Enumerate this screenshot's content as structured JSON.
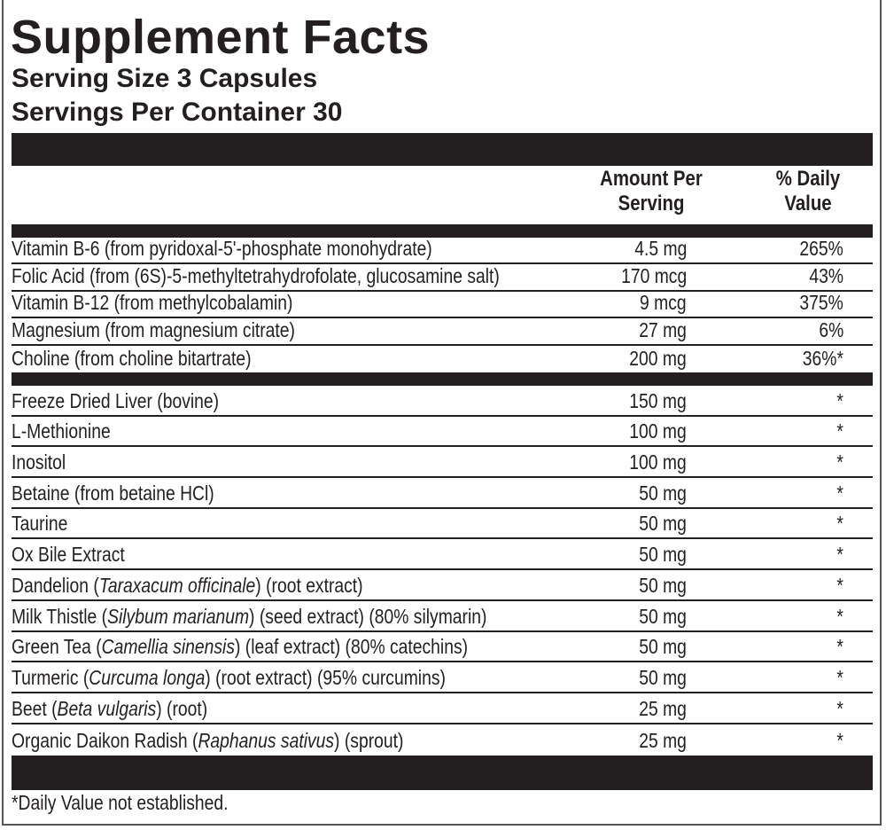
{
  "title": "Supplement Facts",
  "serving_size": "Serving Size 3 Capsules",
  "servings_per_container": "Servings Per Container 30",
  "headers": {
    "amount": "Amount Per Serving",
    "daily_value": "% Daily Value"
  },
  "vitamins": [
    {
      "name": [
        {
          "t": "Vitamin B-6 (from pyridoxal-5'-phosphate monohydrate)"
        }
      ],
      "amount": "4.5 mg",
      "dv": "265%"
    },
    {
      "name": [
        {
          "t": "Folic Acid (from (6S)-5-methyltetrahydrofolate, glucosamine salt)"
        }
      ],
      "amount": "170 mcg",
      "dv": "43%"
    },
    {
      "name": [
        {
          "t": "Vitamin B-12 (from methylcobalamin)"
        }
      ],
      "amount": "9 mcg",
      "dv": "375%"
    },
    {
      "name": [
        {
          "t": "Magnesium (from magnesium citrate)"
        }
      ],
      "amount": "27 mg",
      "dv": "6%"
    },
    {
      "name": [
        {
          "t": "Choline (from choline bitartrate)"
        }
      ],
      "amount": "200 mg",
      "dv": "36%*"
    }
  ],
  "others": [
    {
      "name": [
        {
          "t": "Freeze Dried Liver (bovine)"
        }
      ],
      "amount": "150 mg",
      "dv": "*"
    },
    {
      "name": [
        {
          "t": "L-Methionine"
        }
      ],
      "amount": "100 mg",
      "dv": "*"
    },
    {
      "name": [
        {
          "t": "Inositol"
        }
      ],
      "amount": "100 mg",
      "dv": "*"
    },
    {
      "name": [
        {
          "t": "Betaine (from betaine HCl)"
        }
      ],
      "amount": "50 mg",
      "dv": "*"
    },
    {
      "name": [
        {
          "t": "Taurine"
        }
      ],
      "amount": "50 mg",
      "dv": "*"
    },
    {
      "name": [
        {
          "t": "Ox Bile Extract"
        }
      ],
      "amount": "50 mg",
      "dv": "*"
    },
    {
      "name": [
        {
          "t": "Dandelion ("
        },
        {
          "t": "Taraxacum officinale",
          "i": true
        },
        {
          "t": ") (root extract)"
        }
      ],
      "amount": "50 mg",
      "dv": "*"
    },
    {
      "name": [
        {
          "t": "Milk Thistle ("
        },
        {
          "t": "Silybum marianum",
          "i": true
        },
        {
          "t": ") (seed extract) (80% silymarin)"
        }
      ],
      "amount": "50 mg",
      "dv": "*"
    },
    {
      "name": [
        {
          "t": "Green Tea ("
        },
        {
          "t": "Camellia sinensis",
          "i": true
        },
        {
          "t": ") (leaf extract) (80% catechins)"
        }
      ],
      "amount": "50 mg",
      "dv": "*"
    },
    {
      "name": [
        {
          "t": "Turmeric ("
        },
        {
          "t": "Curcuma longa",
          "i": true
        },
        {
          "t": ") (root extract) (95% curcumins)"
        }
      ],
      "amount": "50 mg",
      "dv": "*"
    },
    {
      "name": [
        {
          "t": "Beet ("
        },
        {
          "t": "Beta vulgaris",
          "i": true
        },
        {
          "t": ") (root)"
        }
      ],
      "amount": "25 mg",
      "dv": "*"
    },
    {
      "name": [
        {
          "t": "Organic Daikon Radish ("
        },
        {
          "t": "Raphanus sativus",
          "i": true
        },
        {
          "t": ") (sprout)"
        }
      ],
      "amount": "25 mg",
      "dv": "*"
    }
  ],
  "footnote": "*Daily Value not established."
}
